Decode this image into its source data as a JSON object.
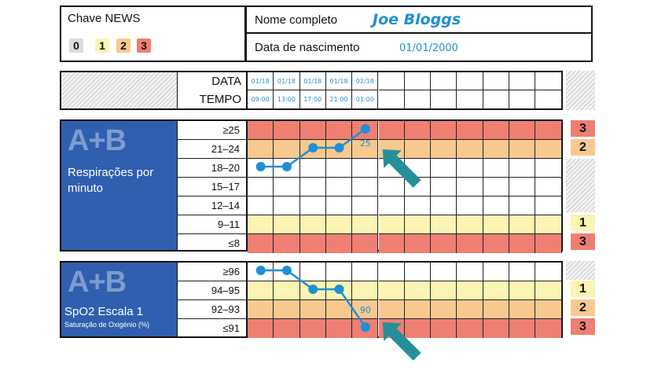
{
  "key": {
    "title": "Chave NEWS",
    "scores": [
      "0",
      "1",
      "2",
      "3"
    ],
    "colors": {
      "0": "#dcdcdc",
      "1": "#fbf4b3",
      "2": "#f8c98f",
      "3": "#ee7f72"
    }
  },
  "patient": {
    "name_label": "Nome completo",
    "name_value": "Joe Bloggs",
    "dob_label": "Data de nascimento",
    "dob_value": "01/01/2000"
  },
  "header": {
    "date_label": "DATA",
    "time_label": "TEMPO",
    "dates": [
      "01/18",
      "01/18",
      "01/18",
      "01/18",
      "02/18",
      "",
      "",
      "",
      "",
      "",
      "",
      "",
      ""
    ],
    "times": [
      "09:00",
      "13:00",
      "17:00",
      "21:00",
      "01:00",
      "",
      "",
      "",
      "",
      "",
      "",
      "",
      ""
    ]
  },
  "respiration": {
    "tag": "A+B",
    "title": "Respirações por minuto",
    "rows": [
      {
        "label": "≥25",
        "score": "3"
      },
      {
        "label": "21–24",
        "score": "2"
      },
      {
        "label": "18–20",
        "score": ""
      },
      {
        "label": "15–17",
        "score": ""
      },
      {
        "label": "12–14",
        "score": ""
      },
      {
        "label": "9–11",
        "score": "1"
      },
      {
        "label": "≤8",
        "score": "3"
      }
    ],
    "plotted": [
      {
        "col": 0,
        "row": 2
      },
      {
        "col": 1,
        "row": 2
      },
      {
        "col": 2,
        "row": 1
      },
      {
        "col": 3,
        "row": 1
      },
      {
        "col": 4,
        "row": 0
      }
    ],
    "annotation": "25"
  },
  "spo2": {
    "tag": "A+B",
    "title": "SpO2 Escala 1",
    "subtitle": "Saturação de Oxigénio (%)",
    "rows": [
      {
        "label": "≥96",
        "score": ""
      },
      {
        "label": "94–95",
        "score": "1"
      },
      {
        "label": "92–93",
        "score": "2"
      },
      {
        "label": "≤91",
        "score": "3"
      }
    ],
    "plotted": [
      {
        "col": 0,
        "row": 0
      },
      {
        "col": 1,
        "row": 0
      },
      {
        "col": 2,
        "row": 1
      },
      {
        "col": 3,
        "row": 1
      },
      {
        "col": 4,
        "row": 3
      }
    ],
    "annotation": "90"
  }
}
